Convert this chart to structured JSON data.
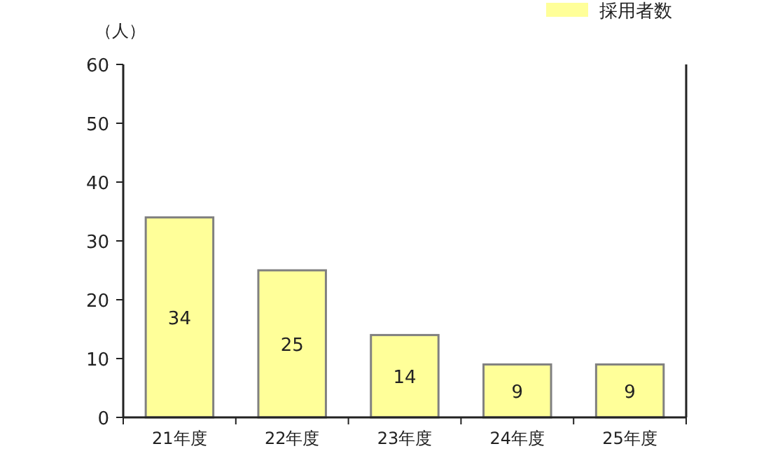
{
  "chart_data": {
    "type": "bar",
    "ylabel": "（人）",
    "categories": [
      "21年度",
      "22年度",
      "23年度",
      "24年度",
      "25年度"
    ],
    "series": [
      {
        "name": "採用者数",
        "color": "#ffff99",
        "values": [
          34,
          25,
          14,
          9,
          9
        ]
      }
    ],
    "ylim": [
      0,
      60
    ],
    "yticks": [
      0,
      10,
      20,
      30,
      40,
      50,
      60
    ],
    "data_labels": true,
    "legend": "top right",
    "grid": false
  }
}
